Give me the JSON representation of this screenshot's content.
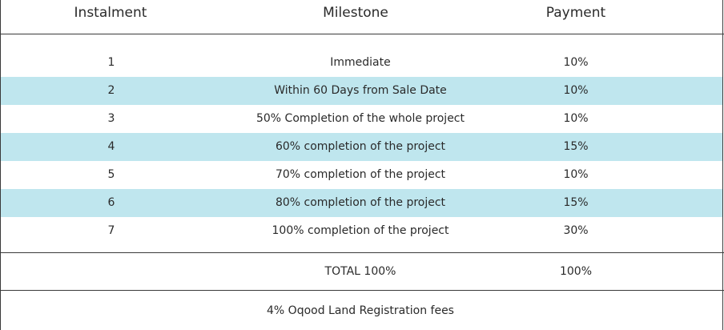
{
  "table": {
    "headers": [
      "Instalment",
      "Milestone",
      "Payment"
    ],
    "rows": [
      {
        "instalment": "1",
        "milestone": "Immediate",
        "payment": "10%"
      },
      {
        "instalment": "2",
        "milestone": "Within 60 Days from Sale Date",
        "payment": "10%"
      },
      {
        "instalment": "3",
        "milestone": "50% Completion of the whole project",
        "payment": "10%"
      },
      {
        "instalment": "4",
        "milestone": "60% completion of the project",
        "payment": "15%"
      },
      {
        "instalment": "5",
        "milestone": "70% completion of the project",
        "payment": "10%"
      },
      {
        "instalment": "6",
        "milestone": "80% completion of the project",
        "payment": "15%"
      },
      {
        "instalment": "7",
        "milestone": "100% completion of the project",
        "payment": "30%"
      }
    ],
    "total": {
      "label": "TOTAL 100%",
      "payment": "100%"
    },
    "footer_note": "4% Oqood Land Registration fees",
    "colors": {
      "stripe": "#bfe6ee",
      "rule": "#3a3a3a",
      "text": "#2a2a2a"
    }
  }
}
